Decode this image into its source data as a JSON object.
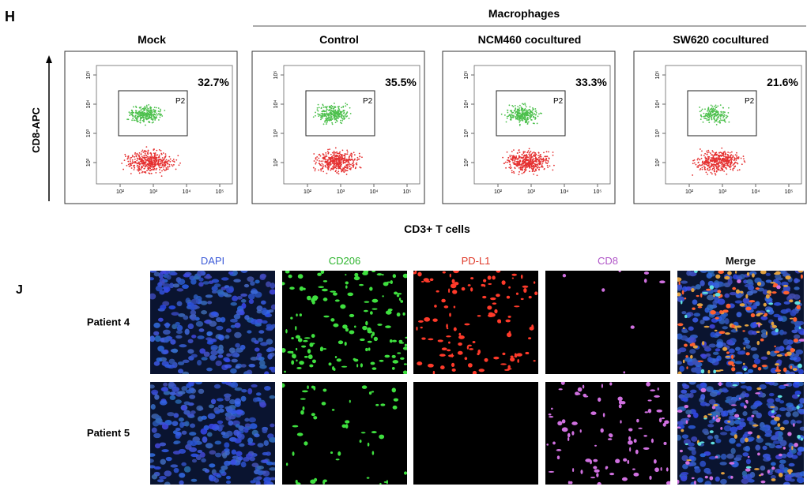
{
  "panel_h": {
    "letter": "H",
    "group_label": "Macrophages",
    "y_axis_label": "CD8-APC",
    "x_axis_label": "CD3+ T cells",
    "x_ticks": [
      "10²",
      "10³",
      "10⁴",
      "10⁵"
    ],
    "y_ticks": [
      "10⁵",
      "10⁴",
      "10³",
      "10²"
    ],
    "plots": [
      {
        "title": "Mock",
        "percent": "32.7%",
        "gate": "P2"
      },
      {
        "title": "Control",
        "percent": "35.5%",
        "gate": "P2"
      },
      {
        "title": "NCM460 cocultured",
        "percent": "33.3%",
        "gate": "P2"
      },
      {
        "title": "SW620 cocultured",
        "percent": "21.6%",
        "gate": "P2"
      }
    ]
  },
  "panel_j": {
    "letter": "J",
    "columns": [
      "DAPI",
      "CD206",
      "PD-L1",
      "CD8",
      "Merge"
    ],
    "rows": [
      "Patient 4",
      "Patient 5"
    ]
  }
}
